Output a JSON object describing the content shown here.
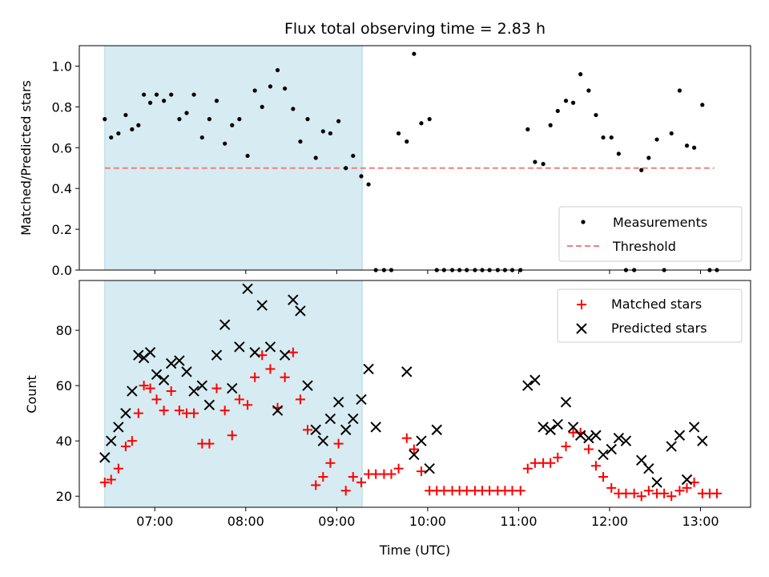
{
  "chart_data": [
    {
      "type": "scatter",
      "title": "Flux total observing time = 2.83 h",
      "xlabel": "",
      "ylabel": "Matched/Predicted stars",
      "xlim": [
        6.17,
        13.55
      ],
      "ylim": [
        0.0,
        1.1
      ],
      "yticks": [
        0.0,
        0.2,
        0.4,
        0.6,
        0.8,
        1.0
      ],
      "ytick_labels": [
        "0.0",
        "0.2",
        "0.4",
        "0.6",
        "0.8",
        "1.0"
      ],
      "xticks": [
        7,
        8,
        9,
        10,
        11,
        12,
        13
      ],
      "shaded_region": [
        6.45,
        9.28
      ],
      "threshold": {
        "label": "Threshold",
        "value": 0.5,
        "x_range": [
          6.45,
          13.15
        ],
        "color": "#f08080"
      },
      "legend": {
        "placement": "bottom-right",
        "entries": [
          "Measurements",
          "Threshold"
        ]
      },
      "series": [
        {
          "name": "Measurements",
          "color": "#000000",
          "x": [
            6.45,
            6.52,
            6.6,
            6.68,
            6.75,
            6.82,
            6.88,
            6.95,
            7.02,
            7.1,
            7.18,
            7.27,
            7.35,
            7.43,
            7.52,
            7.6,
            7.68,
            7.77,
            7.85,
            7.93,
            8.02,
            8.1,
            8.18,
            8.27,
            8.35,
            8.43,
            8.52,
            8.6,
            8.68,
            8.77,
            8.85,
            8.93,
            9.02,
            9.1,
            9.18,
            9.27,
            9.35,
            9.43,
            9.52,
            9.6,
            9.68,
            9.77,
            9.85,
            9.93,
            10.02,
            10.1,
            10.18,
            10.27,
            10.35,
            10.43,
            10.52,
            10.6,
            10.68,
            10.77,
            10.85,
            10.93,
            11.02,
            11.1,
            11.18,
            11.27,
            11.35,
            11.43,
            11.52,
            11.6,
            11.68,
            11.77,
            11.85,
            11.93,
            12.02,
            12.1,
            12.18,
            12.27,
            12.35,
            12.43,
            12.52,
            12.6,
            12.68,
            12.77,
            12.85,
            12.93,
            13.02,
            13.1,
            13.18
          ],
          "y": [
            0.74,
            0.65,
            0.67,
            0.76,
            0.69,
            0.71,
            0.86,
            0.82,
            0.86,
            0.83,
            0.86,
            0.74,
            0.77,
            0.86,
            0.65,
            0.74,
            0.83,
            0.62,
            0.71,
            0.74,
            0.56,
            0.88,
            0.8,
            0.9,
            0.98,
            0.89,
            0.79,
            0.63,
            0.74,
            0.55,
            0.68,
            0.67,
            0.73,
            0.5,
            0.56,
            0.46,
            0.42,
            0.0,
            0.0,
            0.0,
            0.67,
            0.63,
            1.06,
            0.72,
            0.74,
            0.0,
            0.0,
            0.0,
            0.0,
            0.0,
            0.0,
            0.0,
            0.0,
            0.0,
            0.0,
            0.0,
            0.0,
            0.69,
            0.53,
            0.52,
            0.71,
            0.78,
            0.83,
            0.82,
            0.96,
            0.88,
            0.76,
            0.65,
            0.65,
            0.57,
            0.0,
            0.0,
            0.49,
            0.55,
            0.64,
            0.0,
            0.67,
            0.88,
            0.61,
            0.6,
            0.81,
            0.0,
            0.0
          ]
        }
      ]
    },
    {
      "type": "scatter",
      "title": "",
      "xlabel": "Time (UTC)",
      "ylabel": "Count",
      "xlim": [
        6.17,
        13.55
      ],
      "ylim": [
        16,
        98
      ],
      "yticks": [
        20,
        40,
        60,
        80
      ],
      "ytick_labels": [
        "20",
        "40",
        "60",
        "80"
      ],
      "xticks": [
        7,
        8,
        9,
        10,
        11,
        12,
        13
      ],
      "xtick_labels": [
        "07:00",
        "08:00",
        "09:00",
        "10:00",
        "11:00",
        "12:00",
        "13:00"
      ],
      "shaded_region": [
        6.45,
        9.28
      ],
      "legend": {
        "placement": "top-right",
        "entries": [
          "Matched stars",
          "Predicted stars"
        ]
      },
      "series": [
        {
          "name": "Matched stars",
          "marker": "plus",
          "color": "#ff0000",
          "x": [
            6.45,
            6.52,
            6.6,
            6.68,
            6.75,
            6.82,
            6.88,
            6.95,
            7.02,
            7.1,
            7.18,
            7.27,
            7.35,
            7.43,
            7.52,
            7.6,
            7.68,
            7.77,
            7.85,
            7.93,
            8.02,
            8.1,
            8.18,
            8.27,
            8.35,
            8.43,
            8.52,
            8.6,
            8.68,
            8.77,
            8.85,
            8.93,
            9.02,
            9.1,
            9.18,
            9.27,
            9.35,
            9.43,
            9.52,
            9.6,
            9.68,
            9.77,
            9.85,
            9.93,
            10.02,
            10.1,
            10.18,
            10.27,
            10.35,
            10.43,
            10.52,
            10.6,
            10.68,
            10.77,
            10.85,
            10.93,
            11.02,
            11.1,
            11.18,
            11.27,
            11.35,
            11.43,
            11.52,
            11.6,
            11.68,
            11.77,
            11.85,
            11.93,
            12.02,
            12.1,
            12.18,
            12.27,
            12.35,
            12.43,
            12.52,
            12.6,
            12.68,
            12.77,
            12.85,
            12.93,
            13.02,
            13.1,
            13.18
          ],
          "y": [
            25,
            26,
            30,
            38,
            40,
            50,
            60,
            59,
            55,
            51,
            58,
            51,
            50,
            50,
            39,
            39,
            59,
            51,
            42,
            55,
            53,
            63,
            71,
            66,
            52,
            63,
            72,
            55,
            44,
            24,
            27,
            32,
            39,
            22,
            27,
            25,
            28,
            28,
            28,
            28,
            30,
            41,
            37,
            29,
            22,
            22,
            22,
            22,
            22,
            22,
            22,
            22,
            22,
            22,
            22,
            22,
            22,
            30,
            32,
            32,
            32,
            34,
            38,
            43,
            43,
            37,
            31,
            27,
            23,
            21,
            21,
            21,
            20,
            22,
            21,
            21,
            20,
            22,
            23,
            25,
            21,
            21,
            21
          ]
        },
        {
          "name": "Predicted stars",
          "marker": "x",
          "color": "#000000",
          "x": [
            6.45,
            6.52,
            6.6,
            6.68,
            6.75,
            6.82,
            6.88,
            6.95,
            7.02,
            7.1,
            7.18,
            7.27,
            7.35,
            7.43,
            7.52,
            7.6,
            7.68,
            7.77,
            7.85,
            7.93,
            8.02,
            8.1,
            8.18,
            8.27,
            8.35,
            8.43,
            8.52,
            8.6,
            8.68,
            8.77,
            8.85,
            8.93,
            9.02,
            9.1,
            9.18,
            9.27,
            9.35,
            9.43,
            9.77,
            9.85,
            9.93,
            10.02,
            10.1,
            11.1,
            11.18,
            11.27,
            11.35,
            11.43,
            11.52,
            11.6,
            11.68,
            11.77,
            11.85,
            11.93,
            12.02,
            12.1,
            12.18,
            12.35,
            12.43,
            12.52,
            12.68,
            12.77,
            12.85,
            12.93,
            13.02
          ],
          "y": [
            34,
            40,
            45,
            50,
            58,
            71,
            70,
            72,
            64,
            62,
            68,
            69,
            65,
            58,
            60,
            53,
            71,
            82,
            59,
            74,
            95,
            72,
            89,
            74,
            51,
            71,
            91,
            87,
            60,
            44,
            40,
            48,
            54,
            44,
            48,
            55,
            66,
            45,
            65,
            35,
            40,
            30,
            44,
            60,
            62,
            45,
            44,
            46,
            54,
            45,
            42,
            41,
            42,
            35,
            37,
            41,
            40,
            33,
            30,
            25,
            38,
            42,
            26,
            45,
            40
          ]
        }
      ]
    }
  ]
}
